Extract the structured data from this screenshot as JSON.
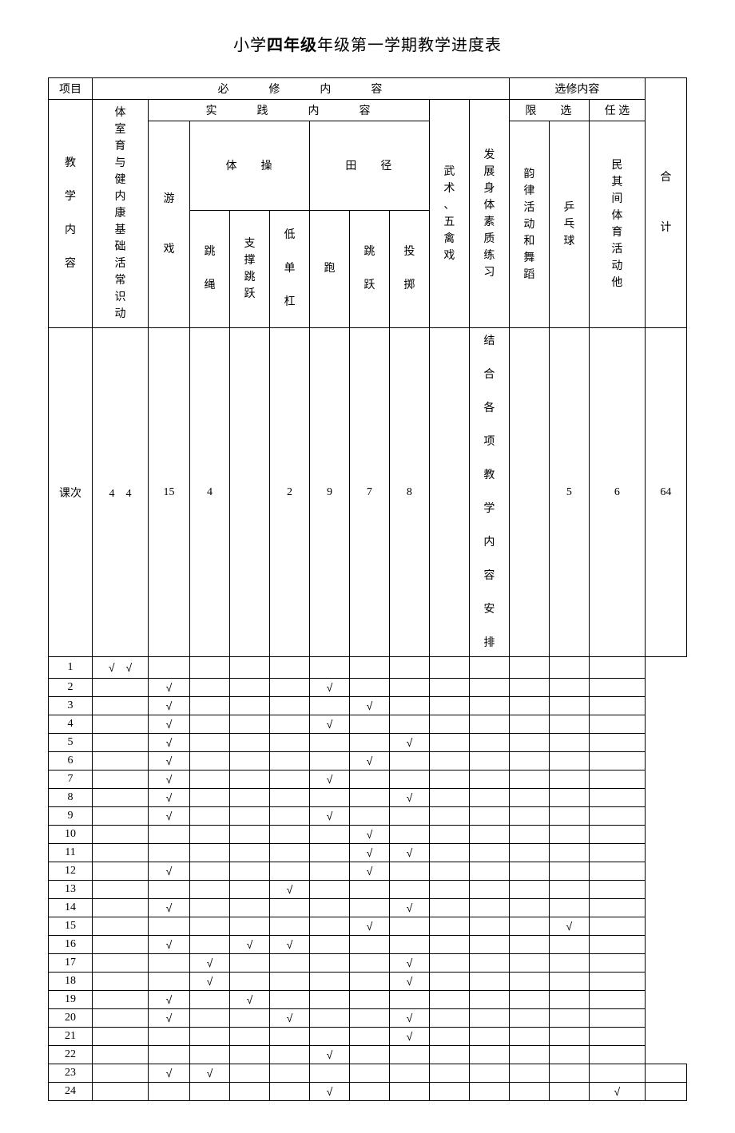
{
  "title_pre": "小学",
  "title_bold": "四年级",
  "title_post": "年级第一学期教学进度表",
  "headers": {
    "project": "项目",
    "required": "必　修　内　容",
    "elective": "选修内容",
    "total": "合\n\n\n计",
    "content_label": "教\n\n学\n\n内\n\n容",
    "col1": "体\n室\n育\n与\n健\n内\n康\n基\n础\n活\n常\n识\n动",
    "practice": "实　践　内　容",
    "limited": "限　选",
    "optional": "任 选",
    "games": "游\n\n\n戏",
    "gymnastics": "体　操",
    "athletics": "田　径",
    "wushu": "武\n术\n、\n五\n禽\n戏",
    "develop": "发\n展\n身\n体\n素\n质\n练\n习",
    "rhythm": "韵\n律\n活\n动\n和\n舞\n蹈",
    "pingpong": "乒\n乓\n球",
    "folk": "民\n其\n间\n体\n育\n活\n动\n他",
    "jumprope": "跳\n\n绳",
    "support": "支\n撑\n跳\n跃",
    "bar": "低\n\n单\n\n杠",
    "run": "跑",
    "jump": "跳\n\n跃",
    "throw": "投\n\n掷",
    "lesson": "课次",
    "combined": "结\n\n合\n\n各\n\n项\n\n教\n\n学\n\n内\n\n容\n\n安\n\n排"
  },
  "counts": [
    "4　4",
    "15",
    "4",
    "",
    "2",
    "9",
    "7",
    "8",
    "",
    "",
    "",
    "5",
    "6",
    "64"
  ],
  "rows": [
    {
      "n": "1",
      "c": [
        "√　√",
        "",
        "",
        "",
        "",
        "",
        "",
        "",
        "",
        "",
        "",
        "",
        ""
      ]
    },
    {
      "n": "2",
      "c": [
        "",
        "√",
        "",
        "",
        "",
        "√",
        "",
        "",
        "",
        "",
        "",
        "",
        ""
      ]
    },
    {
      "n": "3",
      "c": [
        "",
        "√",
        "",
        "",
        "",
        "",
        "√",
        "",
        "",
        "",
        "",
        "",
        ""
      ]
    },
    {
      "n": "4",
      "c": [
        "",
        "√",
        "",
        "",
        "",
        "√",
        "",
        "",
        "",
        "",
        "",
        "",
        ""
      ]
    },
    {
      "n": "5",
      "c": [
        "",
        "√",
        "",
        "",
        "",
        "",
        "",
        "√",
        "",
        "",
        "",
        "",
        ""
      ]
    },
    {
      "n": "6",
      "c": [
        "",
        "√",
        "",
        "",
        "",
        "",
        "√",
        "",
        "",
        "",
        "",
        "",
        ""
      ]
    },
    {
      "n": "7",
      "c": [
        "",
        "√",
        "",
        "",
        "",
        "√",
        "",
        "",
        "",
        "",
        "",
        "",
        ""
      ]
    },
    {
      "n": "8",
      "c": [
        "",
        "√",
        "",
        "",
        "",
        "",
        "",
        "√",
        "",
        "",
        "",
        "",
        ""
      ]
    },
    {
      "n": "9",
      "c": [
        "",
        "√",
        "",
        "",
        "",
        "√",
        "",
        "",
        "",
        "",
        "",
        "",
        ""
      ]
    },
    {
      "n": "10",
      "c": [
        "",
        "",
        "",
        "",
        "",
        "",
        "√",
        "",
        "",
        "",
        "",
        "",
        "√"
      ]
    },
    {
      "n": "11",
      "c": [
        "",
        "",
        "",
        "",
        "",
        "",
        "√",
        "√",
        "",
        "",
        "",
        "",
        ""
      ]
    },
    {
      "n": "12",
      "c": [
        "",
        "√",
        "",
        "",
        "",
        "",
        "√",
        "",
        "",
        "",
        "",
        "",
        ""
      ]
    },
    {
      "n": "13",
      "c": [
        "",
        "",
        "",
        "",
        "√",
        "",
        "",
        "",
        "",
        "",
        "",
        "",
        "√"
      ]
    },
    {
      "n": "14",
      "c": [
        "",
        "√",
        "",
        "",
        "",
        "",
        "",
        "√",
        "",
        "",
        "",
        "",
        ""
      ]
    },
    {
      "n": "15",
      "c": [
        "",
        "",
        "",
        "",
        "",
        "",
        "√",
        "",
        "",
        "",
        "",
        "√",
        ""
      ]
    },
    {
      "n": "16",
      "c": [
        "",
        "√",
        "",
        "√",
        "√",
        "",
        "",
        "",
        "",
        "",
        "",
        "",
        ""
      ]
    },
    {
      "n": "17",
      "c": [
        "",
        "",
        "√",
        "",
        "",
        "",
        "",
        "√",
        "",
        "",
        "",
        "",
        ""
      ]
    },
    {
      "n": "18",
      "c": [
        "",
        "",
        "√",
        "",
        "",
        "",
        "",
        "√",
        "",
        "",
        "",
        "",
        ""
      ]
    },
    {
      "n": "19",
      "c": [
        "",
        "√",
        "",
        "√",
        "",
        "",
        "",
        "",
        "",
        "",
        "",
        "",
        ""
      ]
    },
    {
      "n": "20",
      "c": [
        "",
        "√",
        "",
        "",
        "√",
        "",
        "",
        "√",
        "",
        "",
        "",
        "",
        ""
      ]
    },
    {
      "n": "21",
      "c": [
        "",
        "",
        "",
        "",
        "",
        "",
        "",
        "√",
        "",
        "",
        "",
        "",
        "√"
      ]
    },
    {
      "n": "22",
      "c": [
        "",
        "",
        "",
        "",
        "",
        "√",
        "",
        "",
        "",
        "",
        "",
        "",
        "√"
      ]
    },
    {
      "n": "23",
      "c": [
        "",
        "√",
        "√",
        "",
        "",
        "",
        "",
        "",
        "",
        "",
        "",
        "",
        ""
      ]
    },
    {
      "n": "24",
      "c": [
        "",
        "",
        "",
        "",
        "",
        "√",
        "",
        "",
        "",
        "",
        "",
        "√",
        ""
      ]
    }
  ]
}
